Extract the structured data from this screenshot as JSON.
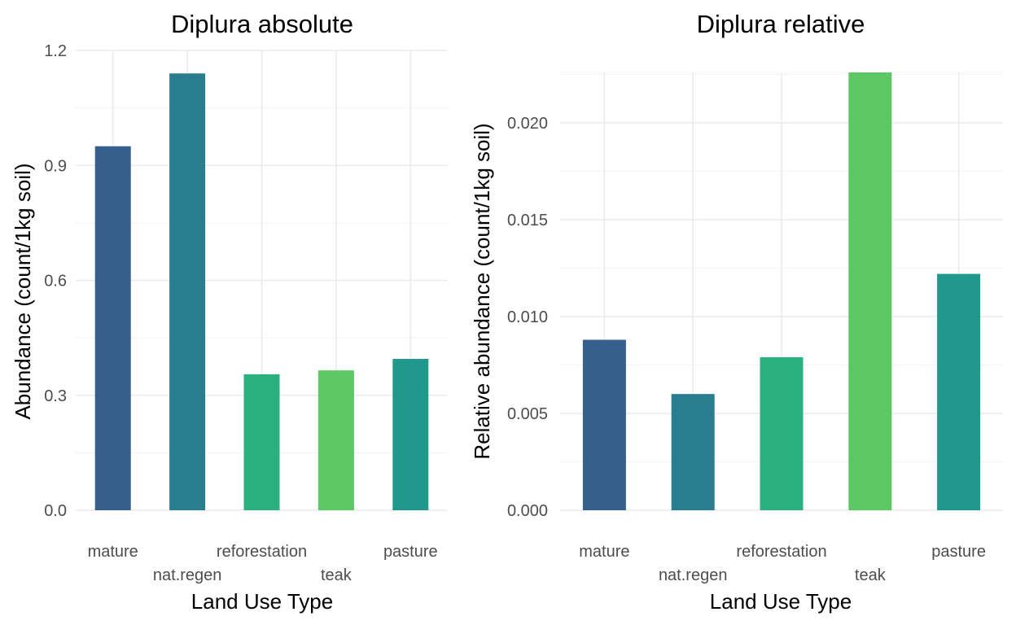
{
  "chart_data": [
    {
      "type": "bar",
      "title": "Diplura absolute",
      "xlabel": "Land Use Type",
      "ylabel": "Abundance (count/1kg soil)",
      "categories": [
        "mature",
        "nat.regen",
        "reforestation",
        "teak",
        "pasture"
      ],
      "values": [
        0.95,
        1.14,
        0.355,
        0.365,
        0.395
      ],
      "colors": [
        "#355F8D",
        "#287D8E",
        "#2BB07F",
        "#5CC863",
        "#20988C"
      ],
      "ylim": [
        0,
        1.2
      ],
      "yticks": [
        0.0,
        0.3,
        0.6,
        0.9,
        1.2
      ],
      "ytick_labels": [
        "0.0",
        "0.3",
        "0.6",
        "0.9",
        "1.2"
      ],
      "grid": true,
      "legend": "none"
    },
    {
      "type": "bar",
      "title": "Diplura relative",
      "xlabel": "Land Use Type",
      "ylabel": "Relative abundance (count/1kg soil)",
      "categories": [
        "mature",
        "nat.regen",
        "reforestation",
        "teak",
        "pasture"
      ],
      "values": [
        0.0088,
        0.006,
        0.0079,
        0.0226,
        0.0122
      ],
      "colors": [
        "#355F8D",
        "#287D8E",
        "#2BB07F",
        "#5CC863",
        "#20988C"
      ],
      "ylim": [
        0,
        0.0226
      ],
      "yticks": [
        0.0,
        0.005,
        0.01,
        0.015,
        0.02
      ],
      "ytick_labels": [
        "0.000",
        "0.005",
        "0.010",
        "0.015",
        "0.020"
      ],
      "grid": true,
      "legend": "none"
    }
  ]
}
